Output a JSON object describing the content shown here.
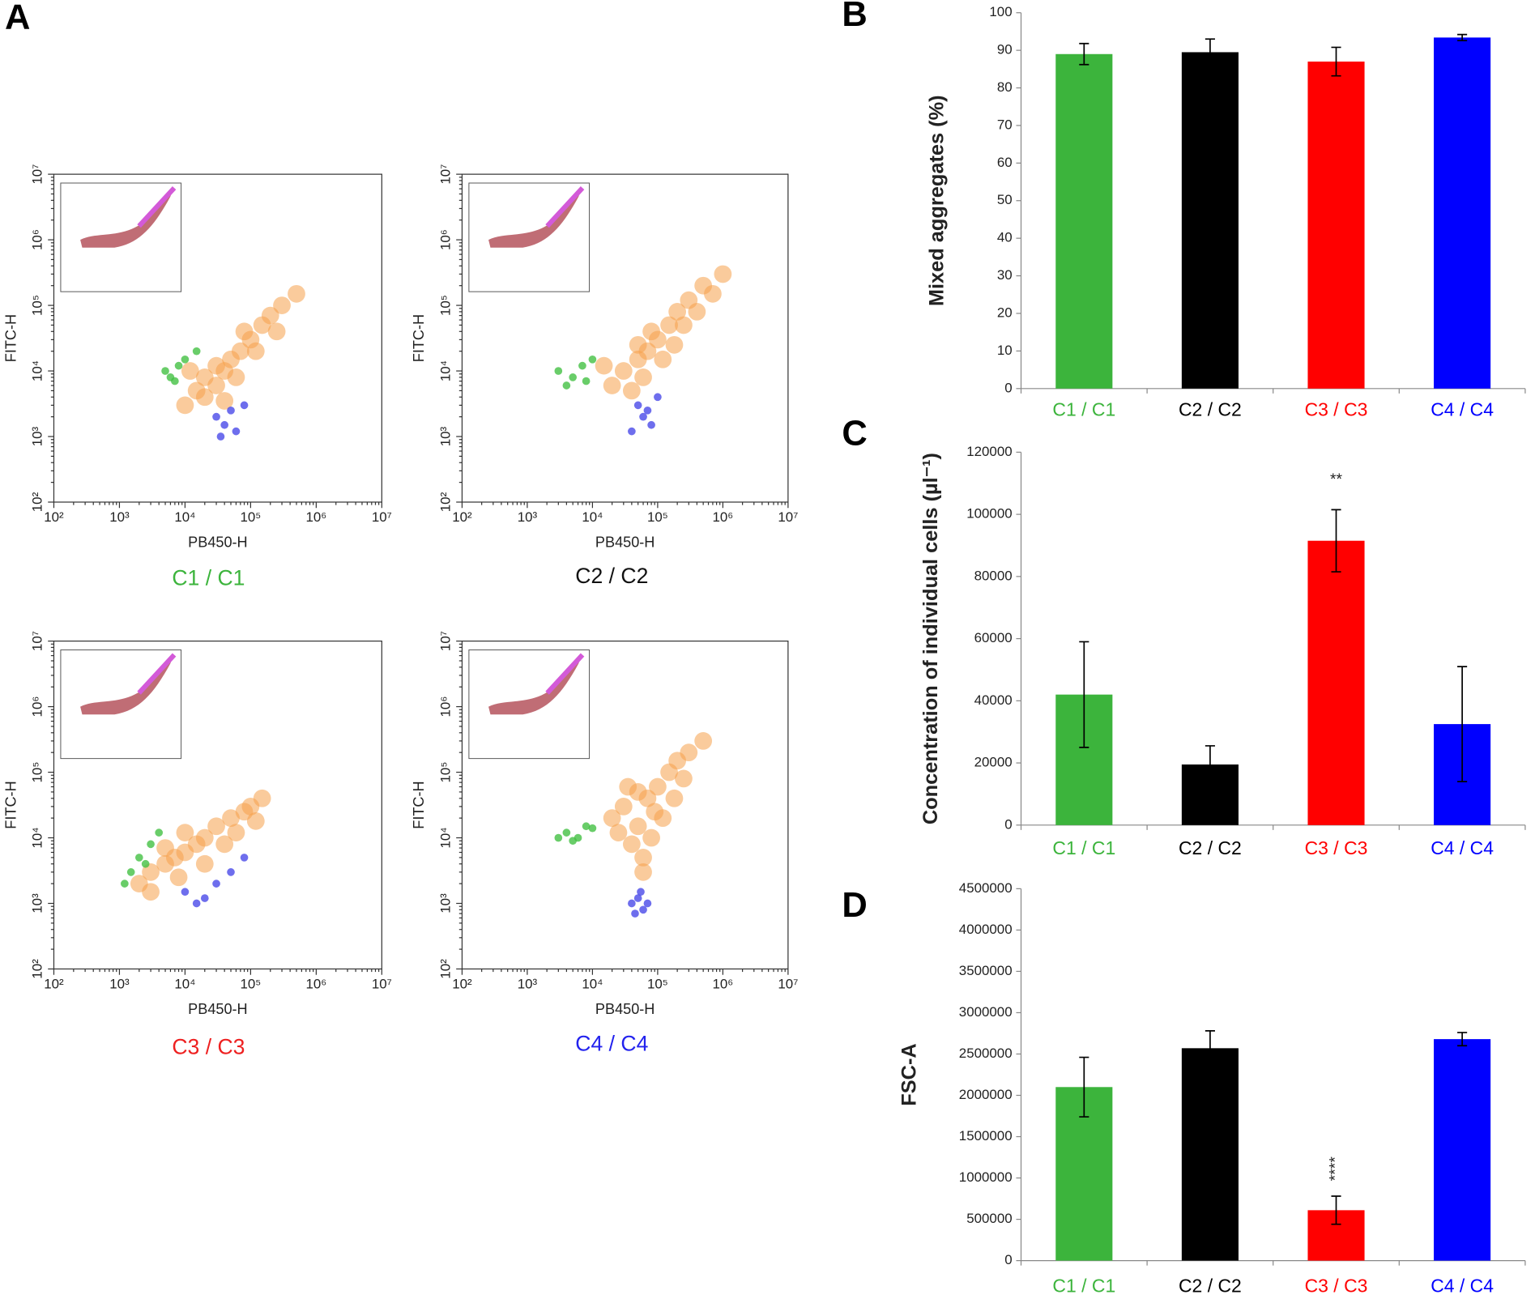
{
  "panels": [
    "A",
    "B",
    "C",
    "D"
  ],
  "chart_data": [
    {
      "type": "scatter",
      "title": "C1 / C1",
      "title_color": "#3cb43c",
      "xlabel": "PB450-H",
      "ylabel": "FITC-H",
      "log_scale": true,
      "xlim": [
        100,
        10000000
      ],
      "ylim": [
        100,
        10000000
      ],
      "xticks": [
        {
          "value": 100,
          "label": "10²"
        },
        {
          "value": 1000,
          "label": "10³"
        },
        {
          "value": 10000,
          "label": "10⁴"
        },
        {
          "value": 100000,
          "label": "10⁵"
        },
        {
          "value": 1000000,
          "label": "10⁶"
        },
        {
          "value": 10000000,
          "label": "10⁷"
        }
      ],
      "yticks": [
        {
          "value": 100,
          "label": "10²"
        },
        {
          "value": 1000,
          "label": "10³"
        },
        {
          "value": 10000,
          "label": "10⁴"
        },
        {
          "value": 100000,
          "label": "10⁵"
        },
        {
          "value": 1000000,
          "label": "10⁶"
        },
        {
          "value": 10000000,
          "label": "10⁷"
        }
      ],
      "series": [
        {
          "color": "#f5a04a",
          "x": [
            10000,
            15000,
            20000,
            30000,
            40000,
            50000,
            70000,
            100000,
            150000,
            200000,
            300000,
            500000,
            20000,
            30000,
            60000,
            80000,
            120000,
            250000,
            12000,
            40000
          ],
          "y": [
            3000,
            5000,
            8000,
            6000,
            10000,
            15000,
            20000,
            30000,
            50000,
            70000,
            100000,
            150000,
            4000,
            12000,
            8000,
            40000,
            20000,
            40000,
            10000,
            3500
          ]
        },
        {
          "color": "#44c044",
          "x": [
            6000,
            8000,
            10000,
            5000,
            15000,
            7000
          ],
          "y": [
            8000,
            12000,
            15000,
            10000,
            20000,
            7000
          ]
        },
        {
          "color": "#4a4ae8",
          "x": [
            30000,
            40000,
            50000,
            60000,
            35000,
            80000
          ],
          "y": [
            2000,
            1500,
            2500,
            1200,
            1000,
            3000
          ]
        }
      ]
    },
    {
      "type": "scatter",
      "title": "C2 / C2",
      "title_color": "#111111",
      "xlabel": "PB450-H",
      "ylabel": "FITC-H",
      "log_scale": true,
      "xlim": [
        100,
        10000000
      ],
      "ylim": [
        100,
        10000000
      ],
      "xticks": [
        {
          "value": 100,
          "label": "10²"
        },
        {
          "value": 1000,
          "label": "10³"
        },
        {
          "value": 10000,
          "label": "10⁴"
        },
        {
          "value": 100000,
          "label": "10⁵"
        },
        {
          "value": 1000000,
          "label": "10⁶"
        },
        {
          "value": 10000000,
          "label": "10⁷"
        }
      ],
      "yticks": [
        {
          "value": 100,
          "label": "10²"
        },
        {
          "value": 1000,
          "label": "10³"
        },
        {
          "value": 10000,
          "label": "10⁴"
        },
        {
          "value": 100000,
          "label": "10⁵"
        },
        {
          "value": 1000000,
          "label": "10⁶"
        },
        {
          "value": 10000000,
          "label": "10⁷"
        }
      ],
      "series": [
        {
          "color": "#f5a04a",
          "x": [
            20000,
            30000,
            50000,
            70000,
            100000,
            150000,
            200000,
            300000,
            500000,
            1000000,
            40000,
            60000,
            80000,
            120000,
            250000,
            400000,
            15000,
            700000,
            50000,
            180000
          ],
          "y": [
            6000,
            10000,
            15000,
            20000,
            30000,
            50000,
            80000,
            120000,
            200000,
            300000,
            5000,
            8000,
            40000,
            15000,
            50000,
            80000,
            12000,
            150000,
            25000,
            25000
          ]
        },
        {
          "color": "#44c044",
          "x": [
            3000,
            5000,
            7000,
            10000,
            4000,
            8000
          ],
          "y": [
            10000,
            8000,
            12000,
            15000,
            6000,
            7000
          ]
        },
        {
          "color": "#4a4ae8",
          "x": [
            50000,
            70000,
            80000,
            60000,
            100000,
            40000
          ],
          "y": [
            3000,
            2500,
            1500,
            2000,
            4000,
            1200
          ]
        }
      ]
    },
    {
      "type": "scatter",
      "title": "C3 / C3",
      "title_color": "#ee2020",
      "xlabel": "PB450-H",
      "ylabel": "FITC-H",
      "log_scale": true,
      "xlim": [
        100,
        10000000
      ],
      "ylim": [
        100,
        10000000
      ],
      "xticks": [
        {
          "value": 100,
          "label": "10²"
        },
        {
          "value": 1000,
          "label": "10³"
        },
        {
          "value": 10000,
          "label": "10⁴"
        },
        {
          "value": 100000,
          "label": "10⁵"
        },
        {
          "value": 1000000,
          "label": "10⁶"
        },
        {
          "value": 10000000,
          "label": "10⁷"
        }
      ],
      "yticks": [
        {
          "value": 100,
          "label": "10²"
        },
        {
          "value": 1000,
          "label": "10³"
        },
        {
          "value": 10000,
          "label": "10⁴"
        },
        {
          "value": 100000,
          "label": "10⁵"
        },
        {
          "value": 1000000,
          "label": "10⁶"
        },
        {
          "value": 10000000,
          "label": "10⁷"
        }
      ],
      "series": [
        {
          "color": "#f5a04a",
          "x": [
            2000,
            3000,
            5000,
            7000,
            10000,
            15000,
            20000,
            30000,
            50000,
            80000,
            100000,
            150000,
            3000,
            8000,
            20000,
            40000,
            60000,
            10000,
            5000,
            120000
          ],
          "y": [
            2000,
            3000,
            4000,
            5000,
            6000,
            8000,
            10000,
            15000,
            20000,
            25000,
            30000,
            40000,
            1500,
            2500,
            4000,
            8000,
            12000,
            12000,
            7000,
            18000
          ]
        },
        {
          "color": "#44c044",
          "x": [
            1500,
            2000,
            3000,
            1200,
            4000,
            2500
          ],
          "y": [
            3000,
            5000,
            8000,
            2000,
            12000,
            4000
          ]
        },
        {
          "color": "#4a4ae8",
          "x": [
            10000,
            20000,
            30000,
            50000,
            80000,
            15000
          ],
          "y": [
            1500,
            1200,
            2000,
            3000,
            5000,
            1000
          ]
        }
      ]
    },
    {
      "type": "scatter",
      "title": "C4 / C4",
      "title_color": "#2222ee",
      "xlabel": "PB450-H",
      "ylabel": "FITC-H",
      "log_scale": true,
      "xlim": [
        100,
        10000000
      ],
      "ylim": [
        100,
        10000000
      ],
      "xticks": [
        {
          "value": 100,
          "label": "10²"
        },
        {
          "value": 1000,
          "label": "10³"
        },
        {
          "value": 10000,
          "label": "10⁴"
        },
        {
          "value": 100000,
          "label": "10⁵"
        },
        {
          "value": 1000000,
          "label": "10⁶"
        },
        {
          "value": 10000000,
          "label": "10⁷"
        }
      ],
      "yticks": [
        {
          "value": 100,
          "label": "10²"
        },
        {
          "value": 1000,
          "label": "10³"
        },
        {
          "value": 10000,
          "label": "10⁴"
        },
        {
          "value": 100000,
          "label": "10⁵"
        },
        {
          "value": 1000000,
          "label": "10⁶"
        },
        {
          "value": 10000000,
          "label": "10⁷"
        }
      ],
      "series": [
        {
          "color": "#f5a04a",
          "x": [
            20000,
            30000,
            50000,
            70000,
            100000,
            150000,
            200000,
            300000,
            500000,
            40000,
            60000,
            80000,
            120000,
            25000,
            50000,
            90000,
            180000,
            35000,
            60000,
            250000
          ],
          "y": [
            20000,
            30000,
            15000,
            40000,
            60000,
            100000,
            150000,
            200000,
            300000,
            8000,
            5000,
            10000,
            20000,
            12000,
            50000,
            25000,
            40000,
            60000,
            3000,
            80000
          ]
        },
        {
          "color": "#44c044",
          "x": [
            3000,
            4000,
            6000,
            8000,
            5000,
            10000
          ],
          "y": [
            10000,
            12000,
            10000,
            15000,
            9000,
            14000
          ]
        },
        {
          "color": "#4a4ae8",
          "x": [
            40000,
            50000,
            60000,
            70000,
            55000,
            45000
          ],
          "y": [
            1000,
            1200,
            800,
            1000,
            1500,
            700
          ]
        }
      ]
    },
    {
      "type": "bar",
      "ylabel": "Mixed aggregates (%)",
      "categories": [
        "C1 / C1",
        "C2 / C2",
        "C3 / C3",
        "C4 / C4"
      ],
      "colors": [
        "#3cb43c",
        "#000000",
        "#ff0000",
        "#0000ff"
      ],
      "values": [
        89,
        89.5,
        87,
        93.4
      ],
      "errors": [
        2.8,
        3.5,
        3.8,
        0.8
      ],
      "ylim": [
        0,
        100
      ],
      "yticks": [
        0,
        10,
        20,
        30,
        40,
        50,
        60,
        70,
        80,
        90,
        100
      ]
    },
    {
      "type": "bar",
      "ylabel": "Concentration of individual cells (µl⁻¹)",
      "categories": [
        "C1 / C1",
        "C2 / C2",
        "C3 / C3",
        "C4 / C4"
      ],
      "colors": [
        "#3cb43c",
        "#000000",
        "#ff0000",
        "#0000ff"
      ],
      "values": [
        42000,
        19500,
        91500,
        32500
      ],
      "errors": [
        17000,
        6000,
        10000,
        18500
      ],
      "annotations": [
        {
          "text": "**",
          "category": 2
        }
      ],
      "ylim": [
        0,
        120000
      ],
      "yticks": [
        0,
        20000,
        40000,
        60000,
        80000,
        100000,
        120000
      ]
    },
    {
      "type": "bar",
      "ylabel": "FSC-A",
      "categories": [
        "C1 / C1",
        "C2 / C2",
        "C3 / C3",
        "C4 / C4"
      ],
      "colors": [
        "#3cb43c",
        "#000000",
        "#ff0000",
        "#0000ff"
      ],
      "values": [
        2100000,
        2570000,
        610000,
        2680000
      ],
      "errors": [
        360000,
        210000,
        170000,
        80000
      ],
      "annotations": [
        {
          "text": "****",
          "category": 2
        }
      ],
      "ylim": [
        0,
        4500000
      ],
      "yticks": [
        0,
        500000,
        1000000,
        1500000,
        2000000,
        2500000,
        3000000,
        3500000,
        4000000,
        4500000
      ]
    }
  ]
}
